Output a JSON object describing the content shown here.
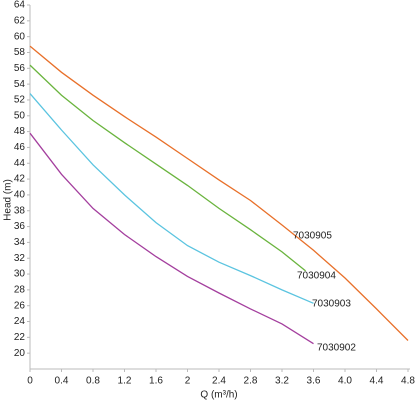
{
  "chart_data": {
    "type": "line",
    "xlabel": "Q (m³/h)",
    "ylabel": "Head (m)",
    "xlim": [
      0,
      4.8
    ],
    "ylim": [
      18,
      64
    ],
    "xticks": [
      0,
      0.4,
      0.8,
      1.2,
      1.6,
      2,
      2.4,
      2.8,
      3.2,
      3.6,
      {
        "value": 4.0,
        "label": "4.0"
      },
      4.4,
      4.8
    ],
    "yticks": [
      20,
      22,
      24,
      26,
      28,
      30,
      32,
      34,
      36,
      38,
      40,
      42,
      44,
      46,
      48,
      50,
      52,
      54,
      56,
      58,
      60,
      62,
      64
    ],
    "grid": false,
    "series": [
      {
        "name": "7030905",
        "color": "#e8702a",
        "x": [
          0,
          0.4,
          0.8,
          1.2,
          1.6,
          2.0,
          2.4,
          2.8,
          3.2,
          3.6,
          4.0,
          4.4,
          4.8
        ],
        "values": [
          58.8,
          55.5,
          52.6,
          49.9,
          47.3,
          44.6,
          41.9,
          39.3,
          36.2,
          33.0,
          29.5,
          25.6,
          21.6
        ]
      },
      {
        "name": "7030904",
        "color": "#6ab43e",
        "x": [
          0,
          0.4,
          0.8,
          1.2,
          1.6,
          2.0,
          2.4,
          2.8,
          3.2,
          3.5
        ],
        "values": [
          56.4,
          52.6,
          49.4,
          46.6,
          43.9,
          41.2,
          38.3,
          35.6,
          32.8,
          30.4
        ]
      },
      {
        "name": "7030903",
        "color": "#5bc4e0",
        "x": [
          0,
          0.4,
          0.8,
          1.2,
          1.6,
          2.0,
          2.4,
          2.8,
          3.2,
          3.6
        ],
        "values": [
          52.8,
          48.2,
          43.8,
          40.0,
          36.5,
          33.6,
          31.5,
          29.8,
          28.0,
          26.3
        ]
      },
      {
        "name": "7030902",
        "color": "#a43f9e",
        "x": [
          0,
          0.4,
          0.8,
          1.2,
          1.6,
          2.0,
          2.4,
          2.8,
          3.2,
          3.6
        ],
        "values": [
          47.8,
          42.6,
          38.3,
          35.0,
          32.2,
          29.7,
          27.6,
          25.6,
          23.7,
          21.2
        ]
      }
    ]
  }
}
